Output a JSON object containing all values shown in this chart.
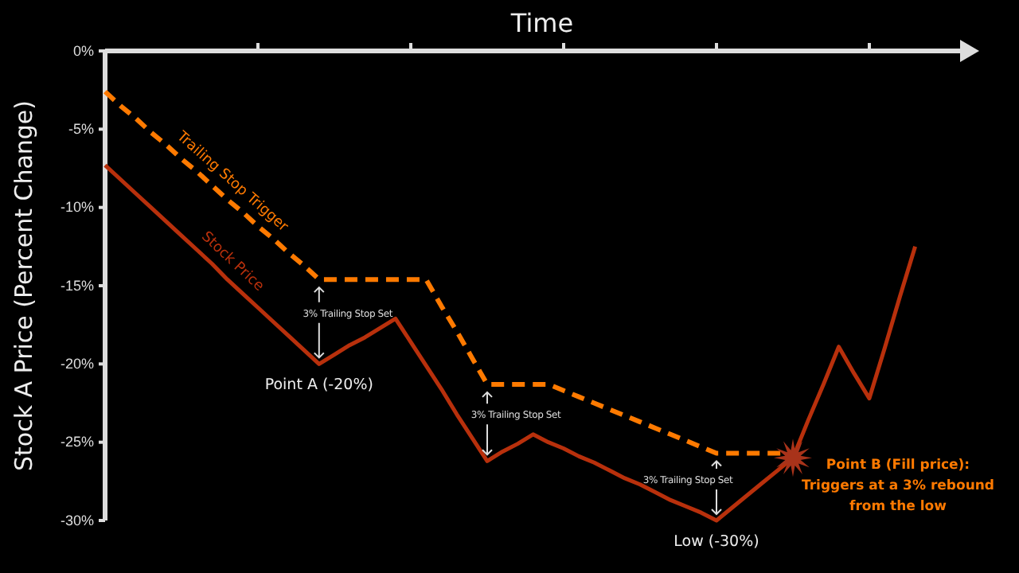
{
  "chart_data": {
    "type": "line",
    "xlabel": "Time",
    "ylabel": "Stock A Price (Percent Change)",
    "categories": [
      null,
      null,
      null,
      null,
      null,
      null,
      null,
      null,
      null,
      null,
      null,
      null,
      null,
      null,
      null,
      null,
      null,
      null,
      null,
      null,
      null,
      null,
      null,
      null,
      null,
      null,
      null,
      null,
      null,
      null,
      null,
      null,
      null,
      null,
      null,
      null,
      null,
      null,
      null,
      null,
      null,
      null,
      null,
      null,
      null,
      null,
      null,
      null,
      null,
      null,
      null,
      null,
      null,
      null
    ],
    "ylim": [
      -30,
      0
    ],
    "yticks": [
      {
        "value": 0,
        "label": "0%"
      },
      {
        "value": -5,
        "label": "-5%"
      },
      {
        "value": -10,
        "label": "-10%"
      },
      {
        "value": -15,
        "label": "-15%"
      },
      {
        "value": -20,
        "label": "-20%"
      },
      {
        "value": -25,
        "label": "-25%"
      },
      {
        "value": -30,
        "label": "-30%"
      }
    ],
    "tick_labels": "y",
    "legend": false,
    "marker": "none",
    "series": [
      {
        "name": "Trailing Stop Trigger",
        "color": "#ff7a00",
        "line_style": "dashed",
        "values": [
          -2.6,
          -3.5,
          -4.3,
          -5.2,
          -6.0,
          -6.9,
          -7.7,
          -8.6,
          -9.5,
          -10.3,
          -11.2,
          -12.0,
          -12.9,
          -13.7,
          -14.6,
          -14.6,
          -14.6,
          -14.6,
          -14.6,
          -14.6,
          -14.6,
          -14.6,
          -16.3,
          -17.9,
          -19.6,
          -21.3,
          -21.3,
          -21.3,
          -21.3,
          -21.3,
          -21.7,
          -22.1,
          -22.5,
          -22.9,
          -23.3,
          -23.7,
          -24.1,
          -24.5,
          -24.9,
          -25.3,
          -25.7,
          -25.7,
          -25.7,
          -25.7,
          -25.7,
          -25.7,
          null,
          null,
          null,
          null,
          null,
          null,
          null,
          null
        ]
      },
      {
        "name": "Stock Price",
        "color": "#b8300c",
        "line_style": "solid",
        "values": [
          -7.3,
          -8.2,
          -9.1,
          -10.0,
          -10.9,
          -11.8,
          -12.7,
          -13.6,
          -14.6,
          -15.5,
          -16.4,
          -17.3,
          -18.2,
          -19.1,
          -20,
          -19.4,
          -18.8,
          -18.3,
          -17.7,
          -17.1,
          -18.6,
          -20.1,
          -21.6,
          -23.2,
          -24.7,
          -26.2,
          -25.6,
          -25.1,
          -24.5,
          -25.0,
          -25.4,
          -25.9,
          -26.3,
          -26.8,
          -27.3,
          -27.7,
          -28.2,
          -28.7,
          -29.1,
          -29.5,
          -30,
          -29.2,
          -28.4,
          -27.6,
          -26.8,
          -26,
          -23.6,
          -21.3,
          -18.9,
          -20.6,
          -22.2,
          -19.0,
          -15.7,
          -12.5
        ]
      }
    ],
    "annotations": [
      "3% Trailing Stop Set",
      "3% Trailing Stop Set",
      "3% Trailing Stop Set",
      "Point A (-20%)",
      "Low (-30%)",
      "Point B (Fill price): Triggers at a 3% rebound from the low"
    ]
  }
}
